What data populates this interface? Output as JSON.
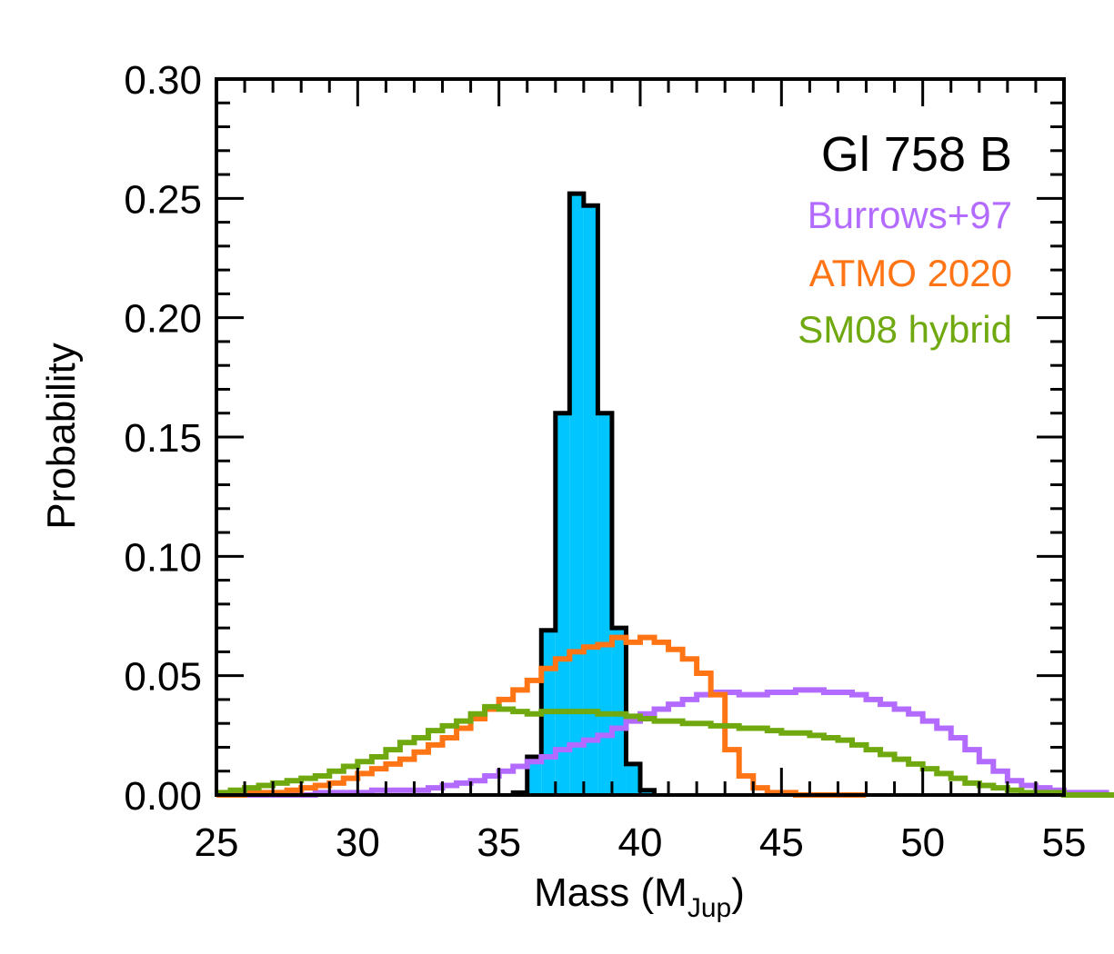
{
  "chart_data": {
    "type": "histogram",
    "title": "Gl 758 B",
    "xlabel": "Mass (M",
    "xlabel_sub": "Jup",
    "xlabel_close": ")",
    "ylabel": "Probability",
    "xlim": [
      25,
      55
    ],
    "ylim": [
      0,
      0.3
    ],
    "x_ticks": [
      25,
      30,
      35,
      40,
      45,
      50,
      55
    ],
    "x_tick_labels": [
      "25",
      "30",
      "35",
      "40",
      "45",
      "50",
      "55"
    ],
    "y_ticks": [
      0,
      0.05,
      0.1,
      0.15,
      0.2,
      0.25,
      0.3
    ],
    "y_tick_labels": [
      "0.00",
      "0.05",
      "0.10",
      "0.15",
      "0.20",
      "0.25",
      "0.30"
    ],
    "bin_width": 0.5,
    "observed": {
      "name": "Gl 758 B",
      "fill": "#00c5ff",
      "edge": "#000000",
      "bin_starts": [
        35.5,
        36.0,
        36.5,
        37.0,
        37.5,
        38.0,
        38.5,
        39.0,
        39.5,
        40.0
      ],
      "values": [
        0.001,
        0.016,
        0.069,
        0.16,
        0.252,
        0.247,
        0.16,
        0.07,
        0.013,
        0.002
      ]
    },
    "series": [
      {
        "name": "Burrows+97",
        "color": "#b36bff",
        "x_start": 25.0,
        "values": [
          0.0,
          0.0,
          0.0,
          0.0,
          0.0,
          0.0,
          0.0,
          0.001,
          0.001,
          0.001,
          0.001,
          0.002,
          0.002,
          0.002,
          0.002,
          0.003,
          0.004,
          0.005,
          0.006,
          0.008,
          0.01,
          0.012,
          0.014,
          0.016,
          0.019,
          0.021,
          0.023,
          0.025,
          0.028,
          0.031,
          0.034,
          0.036,
          0.038,
          0.04,
          0.042,
          0.043,
          0.043,
          0.042,
          0.042,
          0.043,
          0.043,
          0.044,
          0.044,
          0.043,
          0.043,
          0.042,
          0.04,
          0.038,
          0.036,
          0.034,
          0.031,
          0.028,
          0.024,
          0.019,
          0.014,
          0.01,
          0.006,
          0.004,
          0.003,
          0.002,
          0.001,
          0.001,
          0.001,
          0.0,
          0.0,
          0.0,
          0.0,
          0.0,
          0.0,
          0.0,
          0.0,
          0.0,
          0.0,
          0.0,
          0.0,
          0.0,
          0.0,
          0.0,
          0.0,
          0.0,
          0.0,
          0.0,
          0.0,
          0.0,
          0.0
        ]
      },
      {
        "name": "ATMO 2020",
        "color": "#ff7415",
        "x_start": 25.0,
        "values": [
          0.0,
          0.0,
          0.001,
          0.001,
          0.001,
          0.002,
          0.003,
          0.004,
          0.005,
          0.007,
          0.009,
          0.011,
          0.013,
          0.015,
          0.018,
          0.021,
          0.024,
          0.028,
          0.032,
          0.036,
          0.04,
          0.044,
          0.048,
          0.053,
          0.057,
          0.06,
          0.062,
          0.063,
          0.066,
          0.064,
          0.066,
          0.064,
          0.061,
          0.057,
          0.051,
          0.042,
          0.019,
          0.008,
          0.003,
          0.001,
          0.001,
          0.0,
          0.0,
          0.0,
          0.0,
          0.0
        ]
      },
      {
        "name": "SM08 hybrid",
        "color": "#6fa90f",
        "x_start": 25.0,
        "values": [
          0.001,
          0.002,
          0.003,
          0.004,
          0.005,
          0.006,
          0.007,
          0.008,
          0.01,
          0.012,
          0.014,
          0.016,
          0.019,
          0.022,
          0.024,
          0.027,
          0.029,
          0.031,
          0.034,
          0.037,
          0.036,
          0.035,
          0.034,
          0.035,
          0.035,
          0.035,
          0.035,
          0.034,
          0.034,
          0.033,
          0.032,
          0.031,
          0.031,
          0.03,
          0.03,
          0.029,
          0.029,
          0.028,
          0.028,
          0.027,
          0.026,
          0.026,
          0.025,
          0.024,
          0.023,
          0.021,
          0.019,
          0.017,
          0.015,
          0.013,
          0.011,
          0.009,
          0.007,
          0.005,
          0.004,
          0.003,
          0.002,
          0.001,
          0.001,
          0.001,
          0.0,
          0.0,
          0.0,
          0.0,
          0.0,
          0.0,
          0.0,
          0.0,
          0.0,
          0.0,
          0.0,
          0.0,
          0.0,
          0.0,
          0.0,
          0.0,
          0.0,
          0.0,
          0.0,
          0.0,
          0.0,
          0.0,
          0.0,
          0.0,
          0.0,
          0.0
        ]
      }
    ],
    "legend_position": "top-right"
  }
}
